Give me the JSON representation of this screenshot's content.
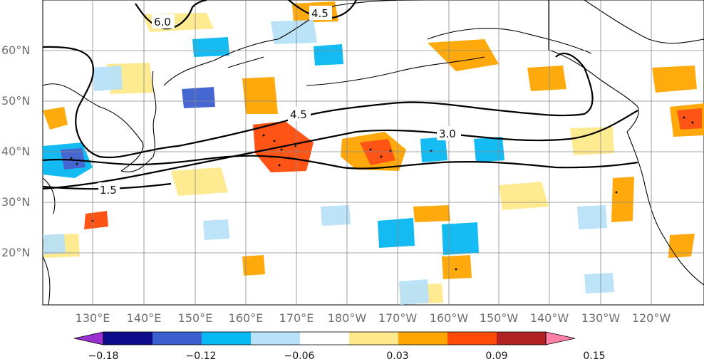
{
  "map": {
    "lat_labels": [
      "60°N",
      "50°N",
      "40°N",
      "30°N",
      "20°N"
    ],
    "lon_labels": [
      "130°E",
      "140°E",
      "150°E",
      "160°E",
      "170°E",
      "180°W",
      "170°W",
      "160°W",
      "150°W",
      "140°W",
      "130°W",
      "120°W"
    ],
    "contour_labels": [
      "6.0",
      "4.5",
      "4.5",
      "3.0",
      "1.5"
    ]
  },
  "colorbar": {
    "colors": [
      "#9b30d0",
      "#0d0d8c",
      "#3c5fcf",
      "#08b8f2",
      "#b8e2f8",
      "#ffffff",
      "#fde98c",
      "#ffa500",
      "#ff4b0a",
      "#b22222",
      "#ff7fa6"
    ],
    "tick_labels": [
      "−0.18",
      "−0.12",
      "−0.06",
      "0.03",
      "0.09",
      "0.15"
    ]
  }
}
